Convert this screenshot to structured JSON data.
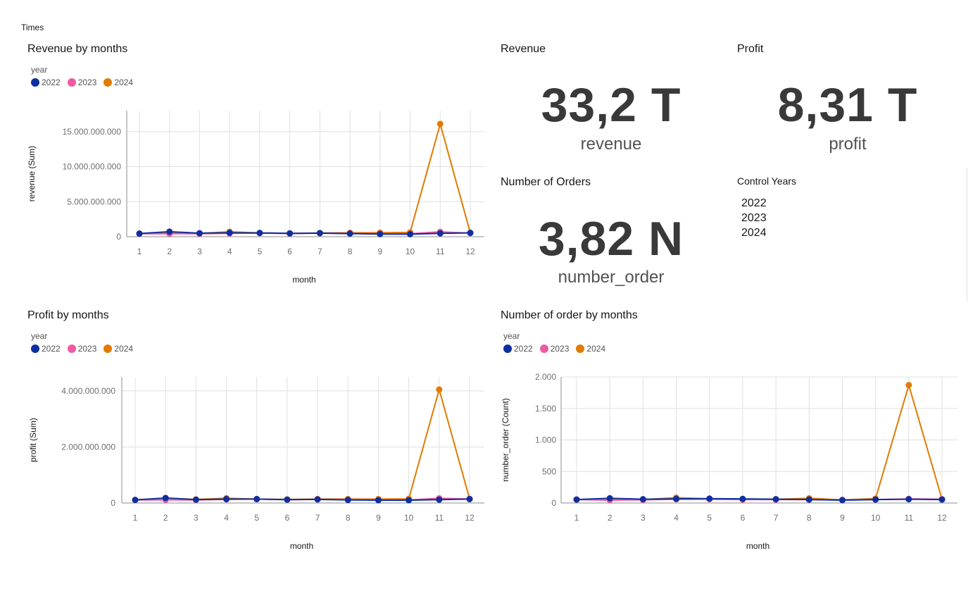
{
  "page": {
    "tab_label": "Times"
  },
  "colors": {
    "2022": "#0f2fa0",
    "2023": "#ef5aa0",
    "2024": "#e07b00",
    "grid": "#e0e0e0",
    "axis": "#8d8d8d",
    "tick": "#6f6f6f"
  },
  "legend": {
    "title": "year",
    "items": [
      "2022",
      "2023",
      "2024"
    ]
  },
  "kpis": {
    "revenue": {
      "title": "Revenue",
      "value": "33,2 T",
      "label": "revenue"
    },
    "profit": {
      "title": "Profit",
      "value": "8,31 T",
      "label": "profit"
    },
    "orders": {
      "title": "Number of Orders",
      "value": "3,82 N",
      "label": "number_order"
    }
  },
  "control": {
    "title": "Control Years",
    "items": [
      "2022",
      "2023",
      "2024"
    ]
  },
  "chart_data": [
    {
      "id": "revenue",
      "type": "line",
      "title": "Revenue by months",
      "xlabel": "month",
      "ylabel": "revenue (Sum)",
      "categories": [
        "1",
        "2",
        "3",
        "4",
        "5",
        "6",
        "7",
        "8",
        "9",
        "10",
        "11",
        "12"
      ],
      "ylim": [
        0,
        18000000000
      ],
      "yticks": [
        0,
        5000000000,
        10000000000,
        15000000000
      ],
      "ytick_labels": [
        "0",
        "5.000.000.000",
        "10.000.000.000",
        "15.000.000.000"
      ],
      "series": [
        {
          "name": "2024",
          "values": [
            450000000,
            620000000,
            480000000,
            700000000,
            540000000,
            480000000,
            530000000,
            560000000,
            580000000,
            620000000,
            16100000000,
            560000000
          ]
        },
        {
          "name": "2023",
          "values": [
            430000000,
            420000000,
            430000000,
            480000000,
            520000000,
            450000000,
            500000000,
            470000000,
            440000000,
            430000000,
            700000000,
            520000000
          ]
        },
        {
          "name": "2022",
          "values": [
            450000000,
            720000000,
            500000000,
            560000000,
            540000000,
            480000000,
            520000000,
            440000000,
            380000000,
            370000000,
            480000000,
            550000000
          ]
        }
      ]
    },
    {
      "id": "profit",
      "type": "line",
      "title": "Profit by months",
      "xlabel": "month",
      "ylabel": "profit (Sum)",
      "categories": [
        "1",
        "2",
        "3",
        "4",
        "5",
        "6",
        "7",
        "8",
        "9",
        "10",
        "11",
        "12"
      ],
      "ylim": [
        0,
        4500000000
      ],
      "yticks": [
        0,
        2000000000,
        4000000000
      ],
      "ytick_labels": [
        "0",
        "2.000.000.000",
        "4.000.000.000"
      ],
      "series": [
        {
          "name": "2024",
          "values": [
            110000000,
            170000000,
            130000000,
            170000000,
            140000000,
            130000000,
            140000000,
            140000000,
            140000000,
            150000000,
            4050000000,
            150000000
          ]
        },
        {
          "name": "2023",
          "values": [
            110000000,
            110000000,
            110000000,
            130000000,
            140000000,
            120000000,
            130000000,
            120000000,
            110000000,
            110000000,
            170000000,
            140000000
          ]
        },
        {
          "name": "2022",
          "values": [
            110000000,
            180000000,
            120000000,
            140000000,
            140000000,
            120000000,
            130000000,
            110000000,
            100000000,
            100000000,
            120000000,
            140000000
          ]
        }
      ]
    },
    {
      "id": "orders",
      "type": "line",
      "title": "Number of order by months",
      "xlabel": "month",
      "ylabel": "number_order (Count)",
      "categories": [
        "1",
        "2",
        "3",
        "4",
        "5",
        "6",
        "7",
        "8",
        "9",
        "10",
        "11",
        "12"
      ],
      "ylim": [
        0,
        2000
      ],
      "yticks": [
        0,
        500,
        1000,
        1500,
        2000
      ],
      "ytick_labels": [
        "0",
        "500",
        "1.000",
        "1.500",
        "2.000"
      ],
      "series": [
        {
          "name": "2024",
          "values": [
            55,
            65,
            55,
            85,
            65,
            60,
            60,
            75,
            50,
            70,
            1870,
            60
          ]
        },
        {
          "name": "2023",
          "values": [
            55,
            45,
            50,
            60,
            60,
            55,
            55,
            55,
            50,
            55,
            65,
            60
          ]
        },
        {
          "name": "2022",
          "values": [
            55,
            75,
            60,
            65,
            70,
            65,
            60,
            55,
            45,
            55,
            60,
            55
          ]
        }
      ]
    }
  ]
}
